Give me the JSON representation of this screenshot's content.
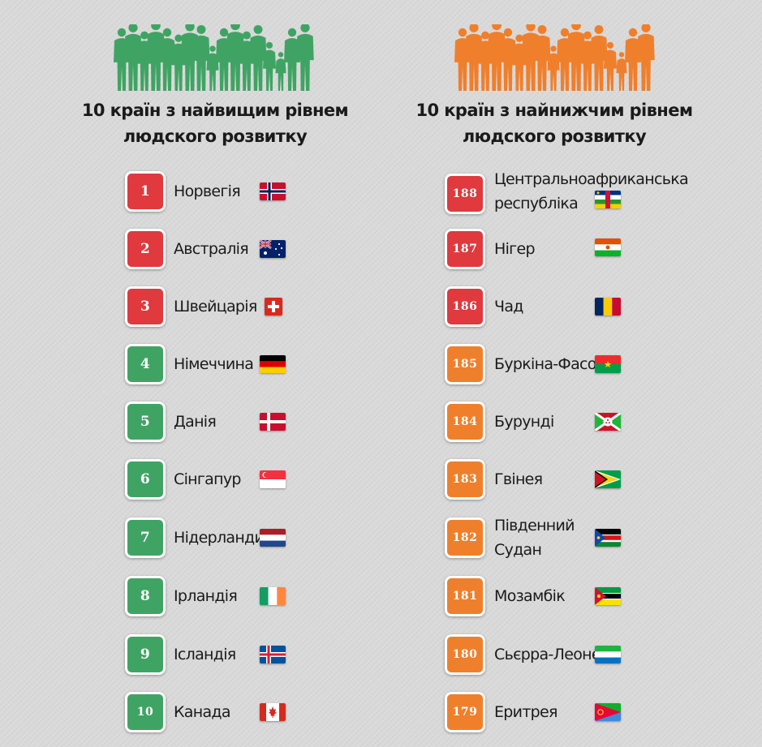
{
  "top": {
    "title_line1": "10 країн з найвищим рівнем",
    "title_line2": "людского розвитку",
    "accent": "#3fa463",
    "items": [
      {
        "rank": "1",
        "name": "Норвегія",
        "color": "#e0393e",
        "flag": "norway-flag-icon"
      },
      {
        "rank": "2",
        "name": "Австралія",
        "color": "#e0393e",
        "flag": "australia-flag-icon"
      },
      {
        "rank": "3",
        "name": "Швейцарія",
        "color": "#e0393e",
        "flag": "switzerland-flag-icon"
      },
      {
        "rank": "4",
        "name": "Німеччина",
        "color": "#3fa463",
        "flag": "germany-flag-icon"
      },
      {
        "rank": "5",
        "name": "Данія",
        "color": "#3fa463",
        "flag": "denmark-flag-icon"
      },
      {
        "rank": "6",
        "name": "Сінгапур",
        "color": "#3fa463",
        "flag": "singapore-flag-icon"
      },
      {
        "rank": "7",
        "name": "Нідерланди",
        "color": "#3fa463",
        "flag": "netherlands-flag-icon"
      },
      {
        "rank": "8",
        "name": "Ірландія",
        "color": "#3fa463",
        "flag": "ireland-flag-icon"
      },
      {
        "rank": "9",
        "name": "Ісландія",
        "color": "#3fa463",
        "flag": "iceland-flag-icon"
      },
      {
        "rank": "10",
        "name": "Канада",
        "color": "#3fa463",
        "flag": "canada-flag-icon"
      }
    ]
  },
  "bottom": {
    "title_line1": "10 країн з найнижчим рівнем",
    "title_line2": "людского розвитку",
    "accent": "#f07f2b",
    "items": [
      {
        "rank": "188",
        "name_line1": "Центральноафриканська",
        "name_line2": "республіка",
        "color": "#e0393e",
        "flag": "central-african-republic-flag-icon"
      },
      {
        "rank": "187",
        "name_line1": "Нігер",
        "name_line2": "",
        "color": "#e0393e",
        "flag": "niger-flag-icon"
      },
      {
        "rank": "186",
        "name_line1": "Чад",
        "name_line2": "",
        "color": "#e0393e",
        "flag": "chad-flag-icon"
      },
      {
        "rank": "185",
        "name_line1": "Буркіна-Фасо",
        "name_line2": "",
        "color": "#f07f2b",
        "flag": "burkina-faso-flag-icon"
      },
      {
        "rank": "184",
        "name_line1": "Бурунді",
        "name_line2": "",
        "color": "#f07f2b",
        "flag": "burundi-flag-icon"
      },
      {
        "rank": "183",
        "name_line1": "Гвінея",
        "name_line2": "",
        "color": "#f07f2b",
        "flag": "guyana-flag-icon"
      },
      {
        "rank": "182",
        "name_line1": "Південний",
        "name_line2": "Судан",
        "color": "#f07f2b",
        "flag": "south-sudan-flag-icon"
      },
      {
        "rank": "181",
        "name_line1": "Мозамбік",
        "name_line2": "",
        "color": "#f07f2b",
        "flag": "mozambique-flag-icon"
      },
      {
        "rank": "180",
        "name_line1": "Сьєрра-Леоне",
        "name_line2": "",
        "color": "#f07f2b",
        "flag": "sierra-leone-flag-icon"
      },
      {
        "rank": "179",
        "name_line1": "Еритрея",
        "name_line2": "",
        "color": "#f07f2b",
        "flag": "eritrea-flag-icon"
      }
    ]
  }
}
